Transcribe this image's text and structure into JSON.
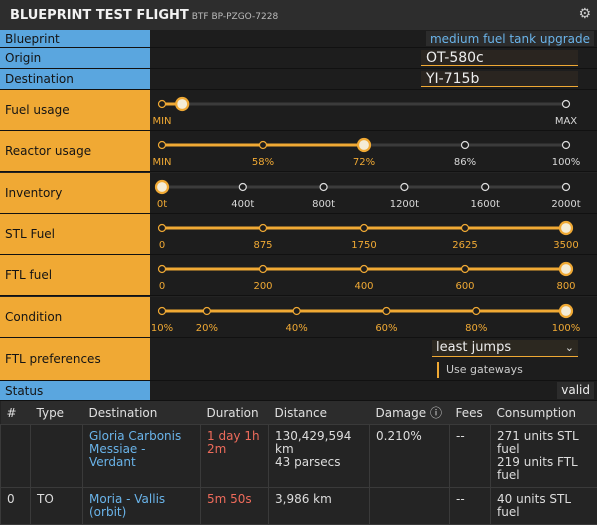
{
  "header": {
    "title": "BLUEPRINT TEST FLIGHT",
    "subtitle": "BTF BP-PZGO-7228"
  },
  "fields": [
    {
      "label": "Blueprint",
      "value": "medium fuel tank upgrade"
    },
    {
      "label": "Origin",
      "value": "OT-580c"
    },
    {
      "label": "Destination",
      "value": "YI-715b"
    }
  ],
  "sliders": [
    {
      "label": "Fuel usage",
      "range": [
        0,
        100
      ],
      "value": 5,
      "ticks": [
        {
          "value": 0,
          "label": "MIN"
        },
        {
          "value": 100,
          "label": "MAX"
        }
      ]
    },
    {
      "label": "Reactor usage",
      "range": [
        44,
        100
      ],
      "value": 72,
      "ticks": [
        {
          "value": 44,
          "label": "MIN"
        },
        {
          "value": 58,
          "label": "58%"
        },
        {
          "value": 72,
          "label": "72%"
        },
        {
          "value": 86,
          "label": "86%"
        },
        {
          "value": 100,
          "label": "100%"
        }
      ]
    },
    {
      "label": "Inventory",
      "range": [
        0,
        2000
      ],
      "value": 0,
      "ticks": [
        {
          "value": 0,
          "label": "0t"
        },
        {
          "value": 400,
          "label": "400t"
        },
        {
          "value": 800,
          "label": "800t"
        },
        {
          "value": 1200,
          "label": "1200t"
        },
        {
          "value": 1600,
          "label": "1600t"
        },
        {
          "value": 2000,
          "label": "2000t"
        }
      ]
    },
    {
      "label": "STL Fuel",
      "range": [
        0,
        3500
      ],
      "value": 3500,
      "ticks": [
        0,
        875,
        1750,
        2625,
        3500
      ]
    },
    {
      "label": "FTL fuel",
      "range": [
        0,
        800
      ],
      "value": 800,
      "ticks": [
        0,
        200,
        400,
        600,
        800
      ]
    },
    {
      "label": "Condition",
      "range": [
        10,
        100
      ],
      "value": 100,
      "ticks": [
        {
          "value": 10,
          "label": "10%"
        },
        {
          "value": 20,
          "label": "20%"
        },
        {
          "value": 40,
          "label": "40%"
        },
        {
          "value": 60,
          "label": "60%"
        },
        {
          "value": 80,
          "label": "80%"
        },
        {
          "value": 100,
          "label": "100%"
        }
      ]
    }
  ],
  "ftl_preferences": {
    "label": "FTL preferences",
    "value": "least jumps",
    "checkbox": "Use gateways"
  },
  "status": {
    "label": "Status",
    "value": "valid"
  },
  "table": {
    "columns": [
      "#",
      "Type",
      "Destination",
      "Duration",
      "Distance",
      "Damage ⓘ",
      "Fees",
      "Consumption"
    ],
    "rows": [
      [
        null,
        null,
        "Gloria Carbonis Messiae - Verdant",
        "1 day 1h 2m",
        [
          "130,429,594 km",
          "43 parsecs"
        ],
        "0.210%",
        "--",
        [
          "271 units STL fuel",
          "219 units FTL fuel"
        ]
      ],
      [
        "0",
        "TO",
        "Moria - Vallis (orbit)",
        "5m 50s",
        [
          "3,986 km"
        ],
        null,
        "--",
        [
          "40 units STL fuel"
        ]
      ]
    ]
  }
}
